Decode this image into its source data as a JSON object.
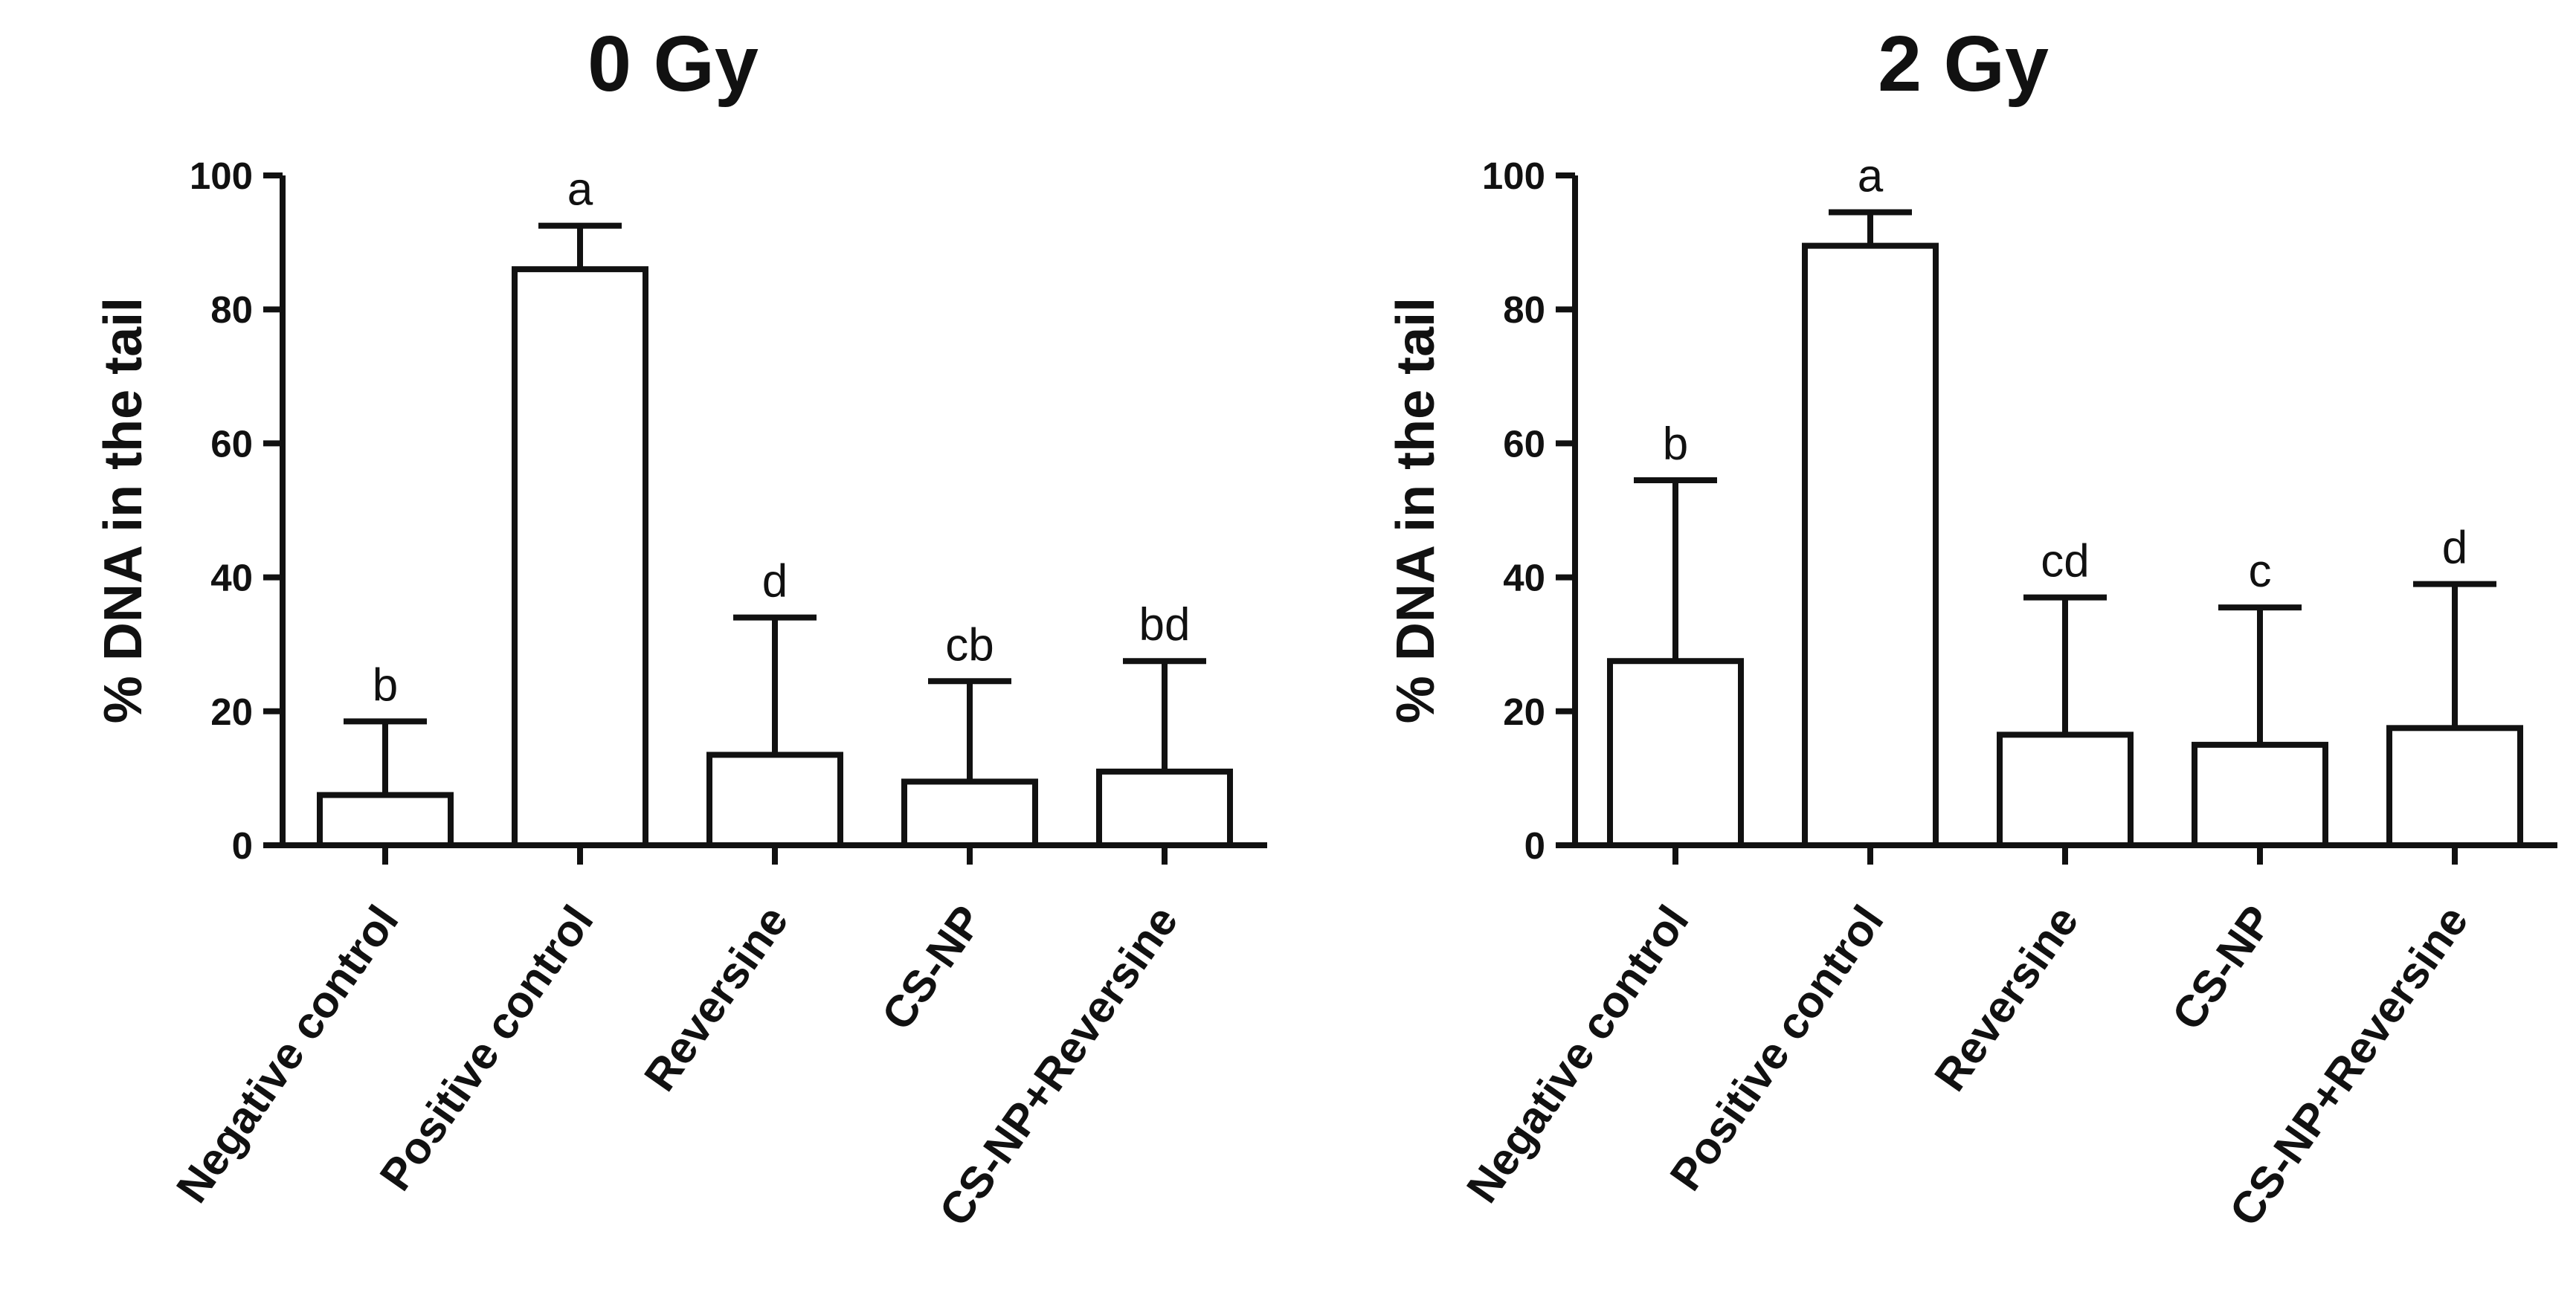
{
  "chart_data": [
    {
      "type": "bar",
      "title": "0 Gy",
      "xlabel": "",
      "ylabel": "% DNA in the tail",
      "ylim": [
        0,
        100
      ],
      "yticks": [
        0,
        20,
        40,
        60,
        80,
        100
      ],
      "tick_labels": [
        "0",
        "20",
        "40",
        "60",
        "80",
        "100"
      ],
      "categories": [
        "Negative control",
        "Positive control",
        "Reversine",
        "CS-NP",
        "CS-NP+Reversine"
      ],
      "values": [
        7.5,
        86,
        13.5,
        9.5,
        11
      ],
      "error_upper": [
        18.5,
        92.5,
        34,
        24.5,
        27.5
      ],
      "significance": [
        "b",
        "a",
        "d",
        "cb",
        "bd"
      ]
    },
    {
      "type": "bar",
      "title": "2 Gy",
      "xlabel": "",
      "ylabel": "% DNA in the tail",
      "ylim": [
        0,
        100
      ],
      "yticks": [
        0,
        20,
        40,
        60,
        80,
        100
      ],
      "tick_labels": [
        "0",
        "20",
        "40",
        "60",
        "80",
        "100"
      ],
      "categories": [
        "Negative control",
        "Positive control",
        "Reversine",
        "CS-NP",
        "CS-NP+Reversine"
      ],
      "values": [
        27.5,
        89.5,
        16.5,
        15,
        17.5
      ],
      "error_upper": [
        54.5,
        94.5,
        37,
        35.5,
        39
      ],
      "significance": [
        "b",
        "a",
        "cd",
        "c",
        "d"
      ]
    }
  ]
}
